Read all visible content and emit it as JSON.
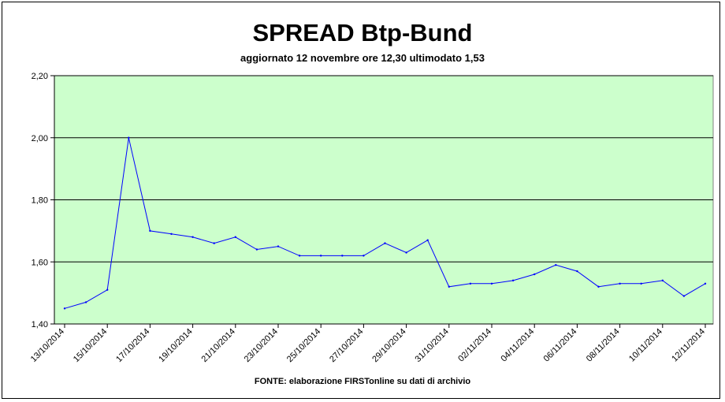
{
  "chart_data": {
    "type": "line",
    "title": "SPREAD Btp-Bund",
    "subtitle": "aggiornato 12 novembre ore 12,30  ultimodato  1,53",
    "source": "FONTE: elaborazione FIRSTonline su dati di archivio",
    "xlabel": "",
    "ylabel": "",
    "ylim": [
      1.4,
      2.2
    ],
    "yticks": [
      "1,40",
      "1,60",
      "1,80",
      "2,00",
      "2,20"
    ],
    "ytick_values": [
      1.4,
      1.6,
      1.8,
      2.0,
      2.2
    ],
    "xtick_labels": [
      "13/10/2014",
      "15/10/2014",
      "17/10/2014",
      "19/10/2014",
      "21/10/2014",
      "23/10/2014",
      "25/10/2014",
      "27/10/2014",
      "29/10/2014",
      "31/10/2014",
      "02/11/2014",
      "04/11/2014",
      "06/11/2014",
      "08/11/2014",
      "10/11/2014",
      "12/11/2014"
    ],
    "grid": true,
    "plot_background": "#ccffcc",
    "line_color": "#0000ff",
    "series": [
      {
        "x": [
          "13/10/2014",
          "14/10/2014",
          "15/10/2014",
          "16/10/2014",
          "17/10/2014",
          "18/10/2014",
          "19/10/2014",
          "20/10/2014",
          "21/10/2014",
          "22/10/2014",
          "23/10/2014",
          "24/10/2014",
          "25/10/2014",
          "26/10/2014",
          "27/10/2014",
          "28/10/2014",
          "29/10/2014",
          "30/10/2014",
          "31/10/2014",
          "01/11/2014",
          "02/11/2014",
          "03/11/2014",
          "04/11/2014",
          "05/11/2014",
          "06/11/2014",
          "07/11/2014",
          "08/11/2014",
          "09/11/2014",
          "10/11/2014",
          "11/11/2014",
          "12/11/2014"
        ],
        "values": [
          1.45,
          1.47,
          1.51,
          2.0,
          1.7,
          1.69,
          1.68,
          1.66,
          1.68,
          1.64,
          1.65,
          1.62,
          1.62,
          1.62,
          1.62,
          1.66,
          1.63,
          1.67,
          1.52,
          1.53,
          1.53,
          1.54,
          1.56,
          1.59,
          1.57,
          1.52,
          1.53,
          1.53,
          1.54,
          1.49,
          1.53
        ]
      }
    ]
  }
}
